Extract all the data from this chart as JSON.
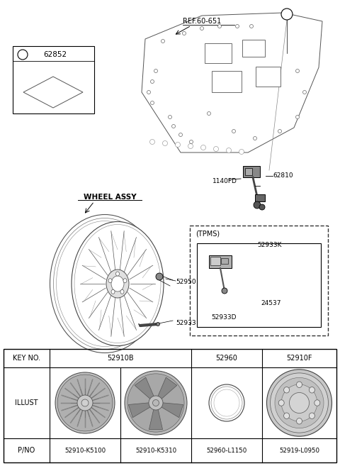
{
  "bg_color": "#ffffff",
  "labels": {
    "ref_651": "REF.60-651",
    "circle_a_top": "a",
    "circle_a_left": "a",
    "part_62852": "62852",
    "part_1140fd": "1140FD",
    "part_62810": "62810",
    "wheel_assy": "WHEEL ASSY",
    "part_52950": "52950",
    "part_52933": "52933",
    "tpms_label": "(TPMS)",
    "part_52933k": "52933K",
    "part_24537": "24537",
    "part_52933d": "52933D"
  },
  "table": {
    "key_row": [
      "KEY NO.",
      "52910B",
      "52960",
      "52910F"
    ],
    "pno_row": [
      "P/NO",
      "52910-K5100",
      "52910-K5310",
      "52960-L1150",
      "52919-L0950"
    ]
  }
}
